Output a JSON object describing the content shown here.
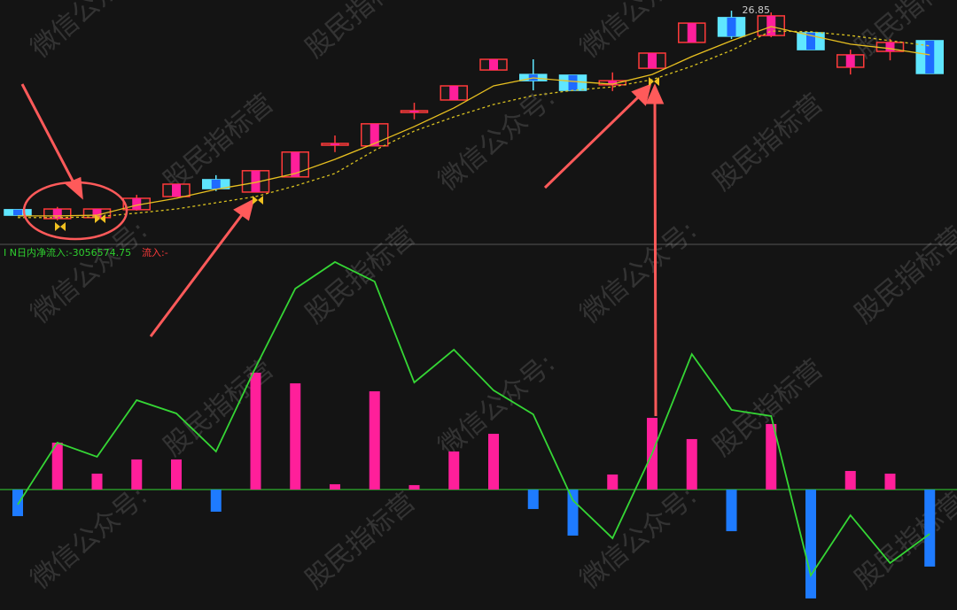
{
  "chart_data": [
    {
      "type": "candlestick",
      "open": [
        21.08,
        20.82,
        20.85,
        21.08,
        21.46,
        21.95,
        21.59,
        22.03,
        22.95,
        22.93,
        23.9,
        24.26,
        25.13,
        25.0,
        24.98,
        24.7,
        25.18,
        25.93,
        26.65,
        26.13,
        26.21,
        25.21,
        25.67,
        25.98
      ],
      "high": [
        21.08,
        21.16,
        21.1,
        21.51,
        21.82,
        22.08,
        22.21,
        22.75,
        23.23,
        23.57,
        24.18,
        24.67,
        25.44,
        25.44,
        24.98,
        25.06,
        25.62,
        26.49,
        26.85,
        26.8,
        26.21,
        25.72,
        26.03,
        25.98
      ],
      "low": [
        20.92,
        20.77,
        20.85,
        21.05,
        21.46,
        21.62,
        21.59,
        22.03,
        22.75,
        22.93,
        23.7,
        24.26,
        25.13,
        24.54,
        24.54,
        24.52,
        25.18,
        25.93,
        26.03,
        26.08,
        25.72,
        25.0,
        25.41,
        25.03
      ],
      "close": [
        20.92,
        21.1,
        21.1,
        21.41,
        21.82,
        21.69,
        22.21,
        22.75,
        23.0,
        23.57,
        23.95,
        24.67,
        25.44,
        24.82,
        24.54,
        24.82,
        25.62,
        26.49,
        26.11,
        26.7,
        25.72,
        25.57,
        25.93,
        25.03
      ],
      "ma_lines": [
        {
          "color": "#e8c020",
          "dashed": false,
          "values": [
            20.9,
            20.9,
            20.92,
            21.21,
            21.41,
            21.67,
            21.87,
            22.13,
            22.54,
            23.0,
            23.49,
            24.03,
            24.67,
            24.9,
            24.8,
            24.72,
            25.0,
            25.52,
            25.98,
            26.39,
            26.13,
            25.88,
            25.75,
            25.57
          ]
        },
        {
          "color": "#d8c020",
          "dashed": true,
          "values": [
            20.85,
            20.85,
            20.87,
            20.98,
            21.1,
            21.28,
            21.46,
            21.77,
            22.13,
            22.8,
            23.36,
            23.77,
            24.13,
            24.39,
            24.54,
            24.64,
            24.85,
            25.24,
            25.7,
            26.26,
            26.24,
            26.13,
            25.98,
            25.83
          ]
        }
      ],
      "colors": {
        "up": "#ff3a3a",
        "up_fill": "#ff1f9a",
        "down": "#5fe6ff",
        "down_fill": "#1e6bff"
      },
      "ylim": [
        20.1,
        27.16
      ]
    },
    {
      "type": "bar",
      "label": "N日内净流入:",
      "label2": "流入:-",
      "values": [
        -1054000,
        1862000,
        632000,
        1195000,
        1195000,
        -878000,
        4638000,
        4216000,
        211000,
        3900000,
        176000,
        1511000,
        2213000,
        -773000,
        -1827000,
        597000,
        2846000,
        2003000,
        -1651000,
        2600000,
        -4321000,
        738000,
        632000,
        -3056574.75
      ],
      "colors": {
        "positive": "#ff1f9a",
        "negative": "#1e7bff",
        "zero_line": "#2fc02f"
      },
      "line": {
        "color": "#35d635",
        "values": [
          -597000,
          1862000,
          1300000,
          3548000,
          3021000,
          1511000,
          4848000,
          7975000,
          9029000,
          8256000,
          4251000,
          5551000,
          3935000,
          2986000,
          -422000,
          -1932000,
          1440000,
          5375000,
          3162000,
          2916000,
          -3408000,
          -1019000,
          -2916000,
          -1757000
        ]
      },
      "ylim": [
        -4780000,
        9590000
      ]
    }
  ],
  "watermark": [
    "微信公众号:",
    "股民指标营"
  ]
}
